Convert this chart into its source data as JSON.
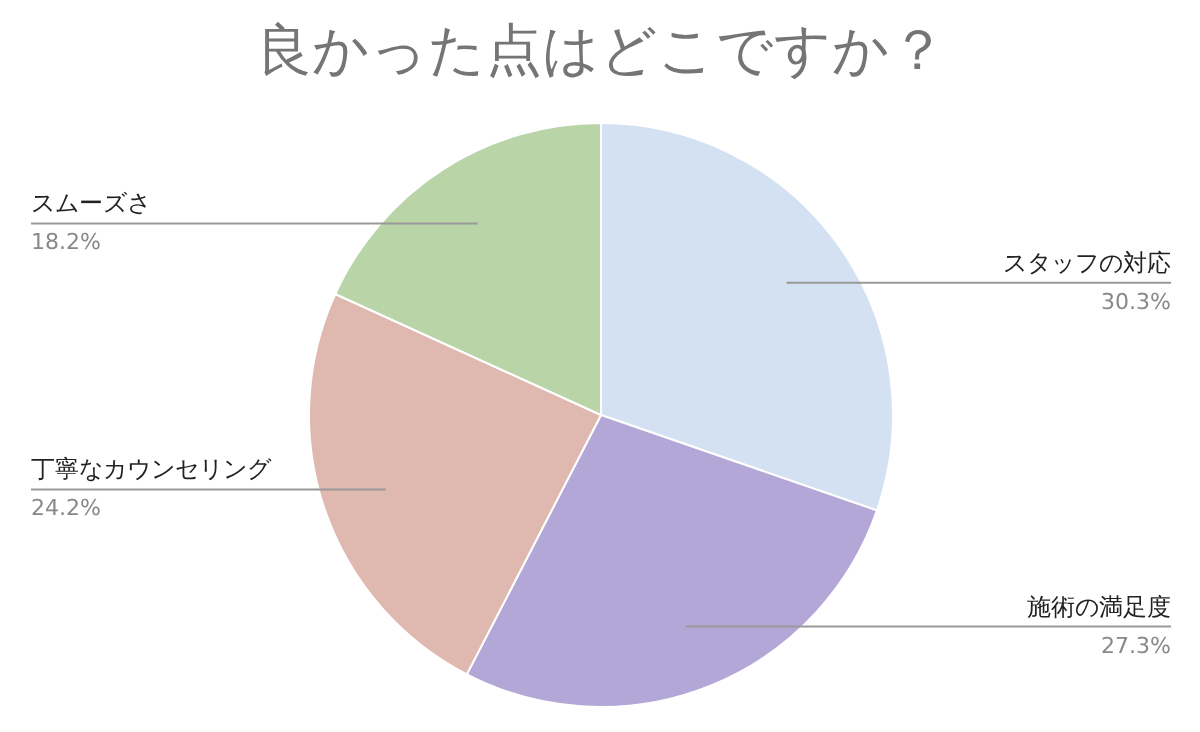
{
  "chart_data": {
    "type": "pie",
    "title": "良かった点はどこですか？",
    "categories": [
      "スタッフの対応",
      "施術の満足度",
      "丁寧なカウンセリング",
      "スムーズさ"
    ],
    "values": [
      30.3,
      27.3,
      24.2,
      18.2
    ],
    "colors": [
      "#d4e1f2",
      "#b2a7d6",
      "#dfb9b0",
      "#b9d5a8"
    ],
    "value_labels": [
      "30.3%",
      "27.3%",
      "24.2%",
      "18.2%"
    ]
  }
}
